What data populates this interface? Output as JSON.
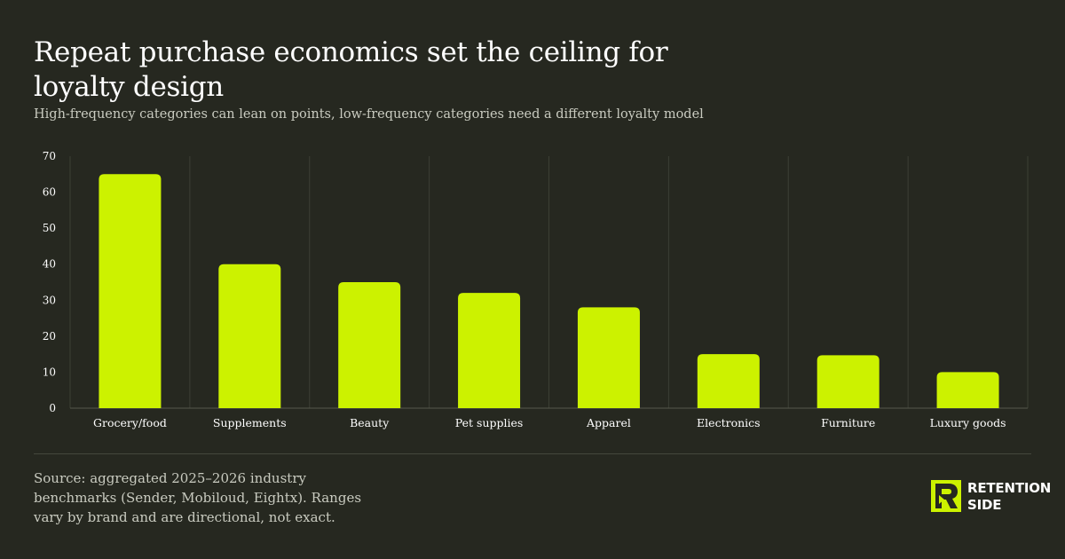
{
  "header": {
    "title": "Repeat purchase economics set the ceiling for loyalty design",
    "subtitle": "High-frequency categories can lean on points, low-frequency categories need a different loyalty model"
  },
  "chart_data": {
    "type": "bar",
    "categories": [
      "Grocery/food",
      "Supplements",
      "Beauty",
      "Pet supplies",
      "Apparel",
      "Electronics",
      "Furniture",
      "Luxury goods"
    ],
    "values": [
      65,
      40,
      35,
      32,
      28,
      15,
      14.7,
      10
    ],
    "ylim": [
      0,
      70
    ],
    "yticks": [
      0,
      10,
      20,
      30,
      40,
      50,
      60,
      70
    ],
    "grid": "vertical",
    "bar_color": "#ccf200"
  },
  "footer": {
    "source": "Source: aggregated 2025–2026 industry benchmarks (Sender, Mobiloud, Eightx). Ranges vary by brand and are directional, not exact."
  },
  "brand": {
    "name_line1": "RETENTION",
    "name_line2": "SIDE",
    "accent": "#ccf200",
    "icon": "retention-side-logo-icon"
  },
  "colors": {
    "background": "#262820",
    "grid": "#3c3f35",
    "text_muted": "#c9cbc0"
  }
}
